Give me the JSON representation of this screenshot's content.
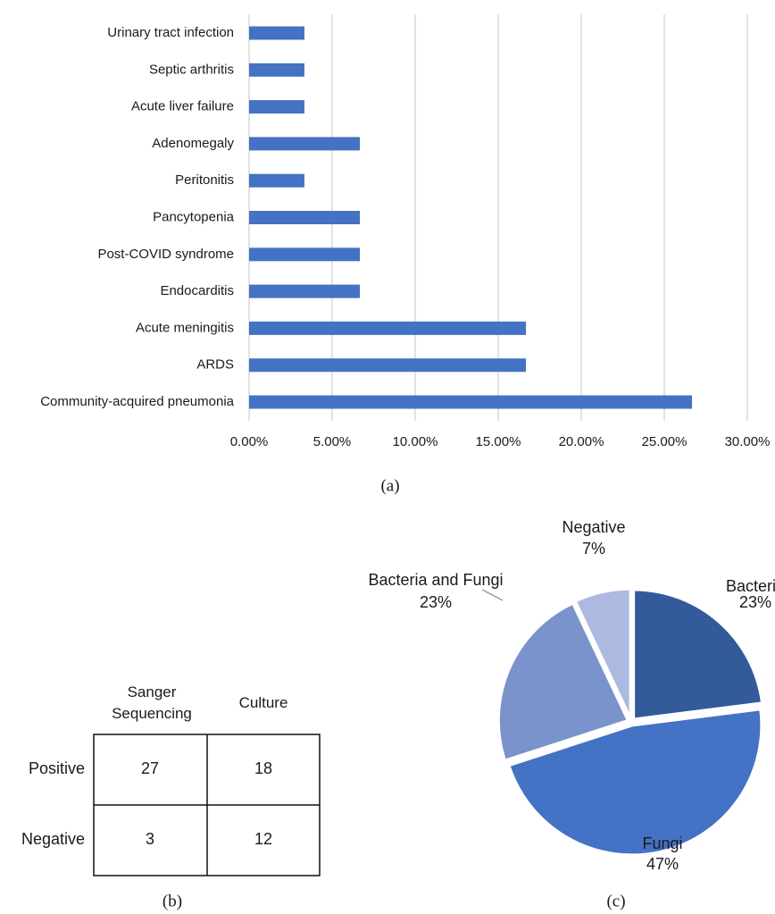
{
  "chart_data": [
    {
      "type": "barh",
      "categories": [
        "Urinary tract infection",
        "Septic arthritis",
        "Acute liver failure",
        "Adenomegaly",
        "Peritonitis",
        "Pancytopenia",
        "Post-COVID syndrome",
        "Endocarditis",
        "Acute meningitis",
        "ARDS",
        "Community-acquired pneumonia"
      ],
      "values": [
        3.33,
        3.33,
        3.33,
        6.67,
        3.33,
        6.67,
        6.67,
        6.67,
        16.67,
        16.67,
        26.67
      ],
      "color": "#4472c4",
      "xlim": [
        0,
        30
      ],
      "xticks": [
        {
          "value": 0,
          "label": "0.00%"
        },
        {
          "value": 5,
          "label": "5.00%"
        },
        {
          "value": 10,
          "label": "10.00%"
        },
        {
          "value": 15,
          "label": "15.00%"
        },
        {
          "value": 20,
          "label": "20.00%"
        },
        {
          "value": 25,
          "label": "25.00%"
        },
        {
          "value": 30,
          "label": "30.00%"
        }
      ],
      "grid": true
    },
    {
      "type": "pie",
      "categories": [
        "Bacteria",
        "Fungi",
        "Bacteria and Fungi",
        "Negative"
      ],
      "values": [
        23,
        47,
        23,
        7
      ],
      "value_labels": [
        "23%",
        "47%",
        "23%",
        "7%"
      ],
      "colors": [
        "#335a9a",
        "#4472c4",
        "#7a93cc",
        "#adb9e0"
      ]
    }
  ],
  "table": {
    "header": [
      "Sanger Sequencing",
      "Culture"
    ],
    "rows": [
      [
        "Positive",
        "27",
        "18"
      ],
      [
        "Negative",
        "3",
        "12"
      ]
    ]
  },
  "captions": [
    "(a)",
    "(b)",
    "(c)"
  ]
}
